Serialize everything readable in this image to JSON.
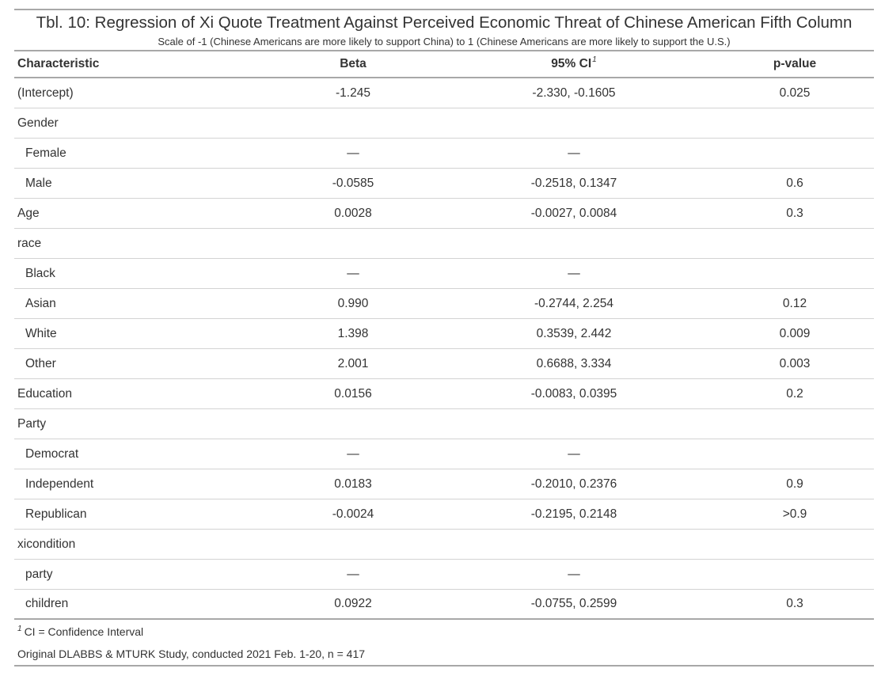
{
  "table": {
    "title": "Tbl. 10: Regression of Xi Quote Treatment Against Perceived Economic Threat of Chinese American Fifth Column",
    "subtitle": "Scale of -1 (Chinese Americans are more likely to support China) to 1 (Chinese Americans are more likely to support the U.S.)",
    "columns": {
      "characteristic": "Characteristic",
      "beta": "Beta",
      "ci": "95% CI",
      "ci_footnote_marker": "1",
      "p_value": "p-value"
    },
    "rows": [
      {
        "label": "(Intercept)",
        "indent": false,
        "beta": "-1.245",
        "ci": "-2.330, -0.1605",
        "p": "0.025"
      },
      {
        "label": "Gender",
        "indent": false,
        "beta": "",
        "ci": "",
        "p": ""
      },
      {
        "label": "Female",
        "indent": true,
        "beta": "—",
        "ci": "—",
        "p": ""
      },
      {
        "label": "Male",
        "indent": true,
        "beta": "-0.0585",
        "ci": "-0.2518, 0.1347",
        "p": "0.6"
      },
      {
        "label": "Age",
        "indent": false,
        "beta": "0.0028",
        "ci": "-0.0027, 0.0084",
        "p": "0.3"
      },
      {
        "label": "race",
        "indent": false,
        "beta": "",
        "ci": "",
        "p": ""
      },
      {
        "label": "Black",
        "indent": true,
        "beta": "—",
        "ci": "—",
        "p": ""
      },
      {
        "label": "Asian",
        "indent": true,
        "beta": "0.990",
        "ci": "-0.2744, 2.254",
        "p": "0.12"
      },
      {
        "label": "White",
        "indent": true,
        "beta": "1.398",
        "ci": "0.3539, 2.442",
        "p": "0.009"
      },
      {
        "label": "Other",
        "indent": true,
        "beta": "2.001",
        "ci": "0.6688, 3.334",
        "p": "0.003"
      },
      {
        "label": "Education",
        "indent": false,
        "beta": "0.0156",
        "ci": "-0.0083, 0.0395",
        "p": "0.2"
      },
      {
        "label": "Party",
        "indent": false,
        "beta": "",
        "ci": "",
        "p": ""
      },
      {
        "label": "Democrat",
        "indent": true,
        "beta": "—",
        "ci": "—",
        "p": ""
      },
      {
        "label": "Independent",
        "indent": true,
        "beta": "0.0183",
        "ci": "-0.2010, 0.2376",
        "p": "0.9"
      },
      {
        "label": "Republican",
        "indent": true,
        "beta": "-0.0024",
        "ci": "-0.2195, 0.2148",
        "p": ">0.9"
      },
      {
        "label": "xicondition",
        "indent": false,
        "beta": "",
        "ci": "",
        "p": ""
      },
      {
        "label": "party",
        "indent": true,
        "beta": "—",
        "ci": "—",
        "p": ""
      },
      {
        "label": "children",
        "indent": true,
        "beta": "0.0922",
        "ci": "-0.0755, 0.2599",
        "p": "0.3"
      }
    ],
    "footnotes": {
      "marker": "1",
      "ci_note": "CI = Confidence Interval",
      "source": "Original DLABBS & MTURK Study, conducted 2021 Feb. 1-20, n = 417"
    }
  }
}
